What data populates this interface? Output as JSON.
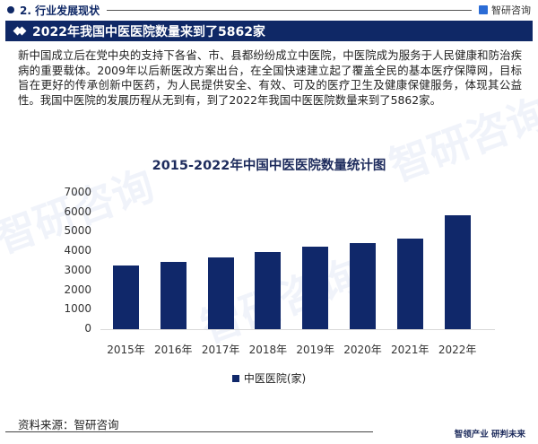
{
  "header": {
    "section_title": "2. 行业发展现状",
    "brand_name": "智研咨询",
    "banner_title": "2022年我国中医医院数量来到了5862家"
  },
  "body": {
    "paragraph": "新中国成立后在党中央的支持下各省、市、县都纷纷成立中医院，中医院成为服务于人民健康和防治疾病的重要载体。2009年以后新医改方案出台，在全国快速建立起了覆盖全民的基本医疗保障网，目标旨在更好的传承创新中医药，为人民提供安全、有效、可及的医疗卫生及健康保健服务，体现其公益性。我国中医院的发展历程从无到有，到了2022年我国中医医院数量来到了5862家。"
  },
  "chart_data": {
    "type": "bar",
    "title": "2015-2022年中国中医医院数量统计图",
    "categories": [
      "2015年",
      "2016年",
      "2017年",
      "2018年",
      "2019年",
      "2020年",
      "2021年",
      "2022年"
    ],
    "series": [
      {
        "name": "中医医院(家)",
        "values": [
          3267,
          3462,
          3695,
          3977,
          4221,
          4426,
          4630,
          5862
        ],
        "color": "#10286a"
      }
    ],
    "xlabel": "",
    "ylabel": "",
    "ylim": [
      0,
      7000
    ],
    "yticks": [
      "7000",
      "6000",
      "5000",
      "4000",
      "3000",
      "2000",
      "1000",
      "0"
    ],
    "grid": false,
    "legend_position": "bottom"
  },
  "footer": {
    "source": "资料来源：智研咨询",
    "slogan": "智领产业 研判未来"
  },
  "colors": {
    "primary": "#0f2866",
    "bar": "#10286a"
  }
}
